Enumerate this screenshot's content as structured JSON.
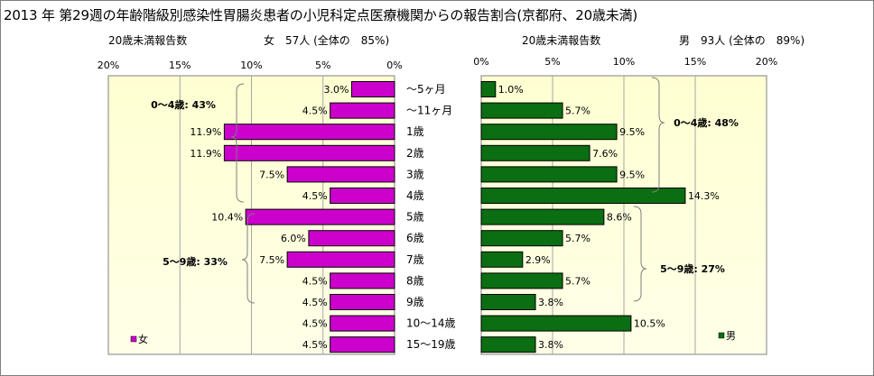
{
  "title": "2013 年 第29週の年齢階級別感染性胃腸炎患者の小児科定点医療機関からの報告割合(京都府、20歳未満)",
  "left_panel": {
    "header_label": "20歳未満報告数",
    "header_stat": "女　57人 (全体の　85%)",
    "legend_label": "女",
    "color": "#cc00cc",
    "group_labels": [
      "0～4歳: 43%",
      "5～9歳: 33%"
    ]
  },
  "right_panel": {
    "header_label": "20歳未満報告数",
    "header_stat": "男　93人 (全体の　89%)",
    "legend_label": "男",
    "color": "#0b6e12",
    "group_labels": [
      "0～4歳: 48%",
      "5～9歳: 27%"
    ]
  },
  "chart_data": [
    {
      "type": "bar",
      "orientation": "horizontal",
      "direction": "reversed",
      "series": [
        {
          "name": "女",
          "values": [
            3.0,
            4.5,
            11.9,
            11.9,
            7.5,
            4.5,
            10.4,
            6.0,
            7.5,
            4.5,
            4.5,
            4.5,
            4.5
          ]
        }
      ],
      "categories": [
        "～5ヶ月",
        "～11ヶ月",
        "1歳",
        "2歳",
        "3歳",
        "4歳",
        "5歳",
        "6歳",
        "7歳",
        "8歳",
        "9歳",
        "10～14歳",
        "15～19歳"
      ],
      "data_labels": [
        "3.0%",
        "4.5%",
        "11.9%",
        "11.9%",
        "7.5%",
        "4.5%",
        "10.4%",
        "6.0%",
        "7.5%",
        "4.5%",
        "4.5%",
        "4.5%",
        "4.5%"
      ],
      "xlim": [
        0,
        20
      ],
      "x_ticks": [
        "20%",
        "15%",
        "10%",
        "5%",
        "0%"
      ],
      "grid": true
    },
    {
      "type": "bar",
      "orientation": "horizontal",
      "series": [
        {
          "name": "男",
          "values": [
            1.0,
            5.7,
            9.5,
            7.6,
            9.5,
            14.3,
            8.6,
            5.7,
            2.9,
            5.7,
            3.8,
            10.5,
            3.8
          ]
        }
      ],
      "categories": [
        "～5ヶ月",
        "～11ヶ月",
        "1歳",
        "2歳",
        "3歳",
        "4歳",
        "5歳",
        "6歳",
        "7歳",
        "8歳",
        "9歳",
        "10～14歳",
        "15～19歳"
      ],
      "data_labels": [
        "1.0%",
        "5.7%",
        "9.5%",
        "7.6%",
        "9.5%",
        "14.3%",
        "8.6%",
        "5.7%",
        "2.9%",
        "5.7%",
        "3.8%",
        "10.5%",
        "3.8%"
      ],
      "xlim": [
        0,
        20
      ],
      "x_ticks": [
        "0%",
        "5%",
        "10%",
        "15%",
        "20%"
      ],
      "grid": true
    }
  ]
}
